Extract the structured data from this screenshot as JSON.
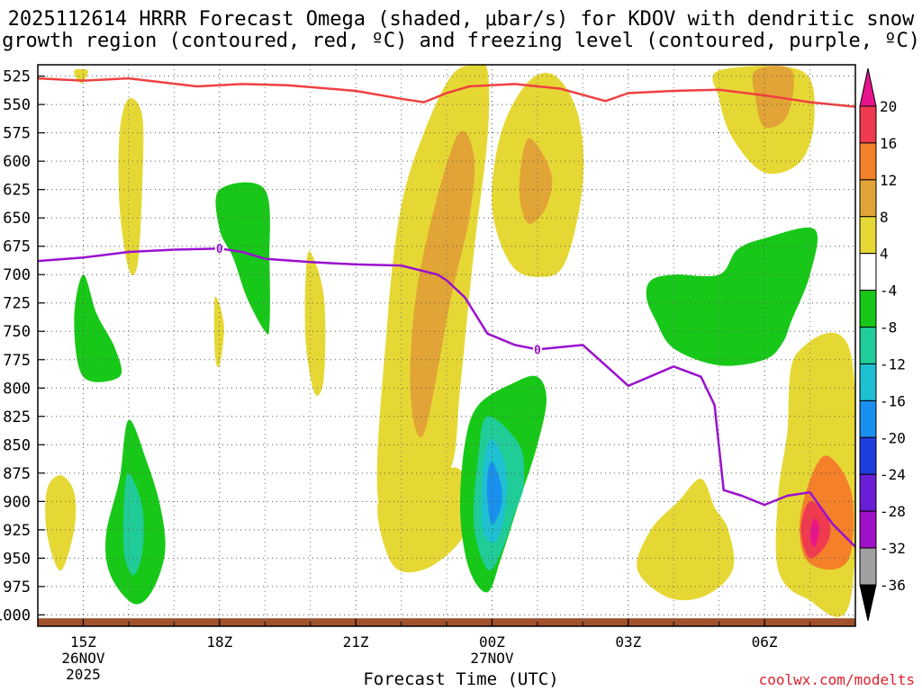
{
  "title_line1": "2025112614 HRRR Forecast Omega (shaded, μbar/s) for KDOV with dendritic snow",
  "title_line2": "growth region (contoured, red, ºC) and freezing level (contoured, purple, ºC)",
  "xlabel": "Forecast Time (UTC)",
  "credit": "coolwx.com/modelts",
  "chart_data": {
    "type": "time-height contour",
    "title": "2025112614 HRRR Forecast Omega (shaded, μbar/s) for KDOV with dendritic snow growth region (contoured, red, ºC) and freezing level (contoured, purple, ºC)",
    "xlabel": "Forecast Time (UTC)",
    "ylabel": "Pressure (hPa)",
    "y_ticks": [
      525,
      550,
      575,
      600,
      625,
      650,
      675,
      700,
      725,
      750,
      775,
      800,
      825,
      850,
      875,
      900,
      925,
      950,
      975,
      1000
    ],
    "ylim": [
      515,
      1010
    ],
    "xlim_hours": [
      14,
      32
    ],
    "x_ticks": [
      {
        "hour": 15,
        "line1": "15Z",
        "line2": "26NOV",
        "line3": "2025"
      },
      {
        "hour": 18,
        "line1": "18Z",
        "line2": "",
        "line3": ""
      },
      {
        "hour": 21,
        "line1": "21Z",
        "line2": "",
        "line3": ""
      },
      {
        "hour": 24,
        "line1": "00Z",
        "line2": "27NOV",
        "line3": ""
      },
      {
        "hour": 27,
        "line1": "03Z",
        "line2": "",
        "line3": ""
      },
      {
        "hour": 30,
        "line1": "06Z",
        "line2": "",
        "line3": ""
      }
    ],
    "colorbar": {
      "labels": [
        "20",
        "16",
        "12",
        "8",
        "4",
        "-4",
        "-8",
        "-12",
        "-16",
        "-20",
        "-24",
        "-28",
        "-32",
        "-36"
      ],
      "bands": [
        {
          "lo": 16,
          "hi": 20,
          "color": "#f03a50"
        },
        {
          "lo": 12,
          "hi": 16,
          "color": "#f4802a"
        },
        {
          "lo": 8,
          "hi": 12,
          "color": "#e2a436"
        },
        {
          "lo": 4,
          "hi": 8,
          "color": "#e6d834"
        },
        {
          "lo": -4,
          "hi": 4,
          "color": "#ffffff"
        },
        {
          "lo": -8,
          "hi": -4,
          "color": "#18c818"
        },
        {
          "lo": -12,
          "hi": -8,
          "color": "#20cc98"
        },
        {
          "lo": -16,
          "hi": -12,
          "color": "#1ec0d2"
        },
        {
          "lo": -20,
          "hi": -16,
          "color": "#1a90ee"
        },
        {
          "lo": -24,
          "hi": -20,
          "color": "#1f3ee0"
        },
        {
          "lo": -28,
          "hi": -24,
          "color": "#6a1ed6"
        },
        {
          "lo": -32,
          "hi": -28,
          "color": "#a010c8"
        },
        {
          "lo": -36,
          "hi": -32,
          "color": "#a0a0a0"
        }
      ],
      "top_arrow_color": "#e8148c",
      "bottom_arrow_color": "#000000"
    },
    "omega_regions": [
      {
        "name": "rising-yellow-a",
        "color": "#e6d834",
        "pts": [
          [
            14.2,
            890
          ],
          [
            14.5,
            877
          ],
          [
            14.8,
            892
          ],
          [
            14.8,
            925
          ],
          [
            14.5,
            961
          ],
          [
            14.2,
            928
          ]
        ]
      },
      {
        "name": "rising-yellow-b",
        "color": "#e6d834",
        "pts": [
          [
            16.0,
            545
          ],
          [
            16.3,
            560
          ],
          [
            16.3,
            620
          ],
          [
            16.2,
            690
          ],
          [
            16.0,
            695
          ],
          [
            15.8,
            640
          ],
          [
            15.8,
            575
          ]
        ]
      },
      {
        "name": "rising-yellow-c",
        "color": "#e6d834",
        "pts": [
          [
            17.9,
            720
          ],
          [
            18.1,
            745
          ],
          [
            18.0,
            780
          ],
          [
            17.9,
            770
          ]
        ]
      },
      {
        "name": "rising-yellow-d",
        "color": "#e6d834",
        "pts": [
          [
            20.0,
            680
          ],
          [
            20.3,
            720
          ],
          [
            20.3,
            790
          ],
          [
            20.1,
            805
          ],
          [
            19.9,
            760
          ],
          [
            19.9,
            700
          ]
        ]
      },
      {
        "name": "rising-yellow-e",
        "color": "#e6d834",
        "pts": [
          [
            14.8,
            520
          ],
          [
            15.1,
            520
          ],
          [
            15.0,
            530
          ],
          [
            14.9,
            530
          ]
        ]
      },
      {
        "name": "rising-yellow-f",
        "color": "#e6d834",
        "pts": [
          [
            22.0,
            640
          ],
          [
            22.5,
            575
          ],
          [
            23.1,
            525
          ],
          [
            23.6,
            515
          ],
          [
            23.9,
            520
          ],
          [
            23.9,
            580
          ],
          [
            23.6,
            680
          ],
          [
            23.3,
            800
          ],
          [
            23.1,
            870
          ],
          [
            22.4,
            890
          ],
          [
            21.5,
            900
          ],
          [
            21.7,
            740
          ]
        ]
      },
      {
        "name": "rising-yellow-f-low",
        "color": "#e6d834",
        "pts": [
          [
            21.5,
            900
          ],
          [
            22.4,
            890
          ],
          [
            23.2,
            870
          ],
          [
            23.6,
            900
          ],
          [
            23.3,
            935
          ],
          [
            22.5,
            960
          ],
          [
            21.8,
            955
          ]
        ]
      },
      {
        "name": "rising-yellow-g",
        "color": "#e6d834",
        "pts": [
          [
            24.2,
            575
          ],
          [
            24.8,
            530
          ],
          [
            25.4,
            525
          ],
          [
            25.9,
            560
          ],
          [
            26.0,
            620
          ],
          [
            25.6,
            690
          ],
          [
            25.0,
            702
          ],
          [
            24.4,
            690
          ],
          [
            24.0,
            640
          ]
        ]
      },
      {
        "name": "rising-yellow-h",
        "color": "#e6d834",
        "pts": [
          [
            29.0,
            520
          ],
          [
            30.8,
            520
          ],
          [
            31.1,
            560
          ],
          [
            30.8,
            600
          ],
          [
            30.0,
            610
          ],
          [
            29.3,
            580
          ],
          [
            29.0,
            545
          ]
        ]
      },
      {
        "name": "rising-yellow-i",
        "color": "#e6d834",
        "pts": [
          [
            28.6,
            880
          ],
          [
            28.9,
            905
          ],
          [
            29.2,
            925
          ],
          [
            29.3,
            960
          ],
          [
            28.7,
            983
          ],
          [
            27.9,
            985
          ],
          [
            27.2,
            960
          ],
          [
            27.5,
            925
          ],
          [
            28.1,
            900
          ]
        ]
      },
      {
        "name": "rising-yellow-j",
        "color": "#e6d834",
        "pts": [
          [
            30.7,
            770
          ],
          [
            31.9,
            770
          ],
          [
            31.9,
            985
          ],
          [
            30.9,
            985
          ],
          [
            30.3,
            960
          ],
          [
            30.3,
            895
          ],
          [
            30.5,
            840
          ]
        ]
      },
      {
        "name": "rising-orange-f",
        "color": "#e2a436",
        "pts": [
          [
            23.2,
            580
          ],
          [
            23.6,
            595
          ],
          [
            23.5,
            650
          ],
          [
            23.1,
            720
          ],
          [
            22.5,
            840
          ],
          [
            22.2,
            800
          ],
          [
            22.4,
            700
          ]
        ]
      },
      {
        "name": "rising-orange-g",
        "color": "#e2a436",
        "pts": [
          [
            24.8,
            580
          ],
          [
            25.3,
            610
          ],
          [
            25.2,
            640
          ],
          [
            24.8,
            655
          ],
          [
            24.6,
            625
          ]
        ]
      },
      {
        "name": "rising-orange-h",
        "color": "#e2a436",
        "pts": [
          [
            29.8,
            520
          ],
          [
            30.6,
            520
          ],
          [
            30.5,
            560
          ],
          [
            30.0,
            570
          ],
          [
            29.8,
            545
          ]
        ]
      },
      {
        "name": "rising-orange-j",
        "color": "#f4802a",
        "pts": [
          [
            31.3,
            860
          ],
          [
            31.9,
            890
          ],
          [
            31.9,
            945
          ],
          [
            31.5,
            960
          ],
          [
            30.9,
            950
          ],
          [
            30.8,
            910
          ]
        ]
      },
      {
        "name": "rising-red-j",
        "color": "#f03a50",
        "pts": [
          [
            31.0,
            900
          ],
          [
            31.4,
            915
          ],
          [
            31.4,
            935
          ],
          [
            31.0,
            950
          ],
          [
            30.8,
            925
          ]
        ]
      },
      {
        "name": "rising-magenta-j",
        "color": "#e8148c",
        "pts": [
          [
            31.1,
            915
          ],
          [
            31.2,
            925
          ],
          [
            31.1,
            940
          ],
          [
            31.0,
            930
          ]
        ]
      },
      {
        "name": "sinking-green-a",
        "color": "#18c818",
        "pts": [
          [
            15.0,
            700
          ],
          [
            15.3,
            735
          ],
          [
            15.7,
            765
          ],
          [
            15.8,
            790
          ],
          [
            15.0,
            790
          ],
          [
            14.8,
            740
          ]
        ]
      },
      {
        "name": "sinking-green-b",
        "color": "#18c818",
        "pts": [
          [
            18.0,
            625
          ],
          [
            19.0,
            625
          ],
          [
            19.1,
            690
          ],
          [
            19.1,
            745
          ],
          [
            19.0,
            750
          ],
          [
            18.6,
            720
          ],
          [
            18.3,
            685
          ],
          [
            18.0,
            660
          ]
        ]
      },
      {
        "name": "sinking-green-c",
        "color": "#18c818",
        "pts": [
          [
            16.0,
            828
          ],
          [
            16.4,
            865
          ],
          [
            16.7,
            905
          ],
          [
            16.8,
            945
          ],
          [
            16.5,
            980
          ],
          [
            16.1,
            990
          ],
          [
            15.6,
            965
          ],
          [
            15.5,
            930
          ],
          [
            15.8,
            880
          ]
        ]
      },
      {
        "name": "sinking-green-d",
        "color": "#18c818",
        "pts": [
          [
            24.5,
            795
          ],
          [
            25.0,
            790
          ],
          [
            25.2,
            810
          ],
          [
            25.0,
            850
          ],
          [
            24.6,
            900
          ],
          [
            24.2,
            950
          ],
          [
            23.9,
            980
          ],
          [
            23.5,
            960
          ],
          [
            23.3,
            910
          ],
          [
            23.4,
            850
          ],
          [
            23.7,
            815
          ]
        ]
      },
      {
        "name": "sinking-green-e",
        "color": "#18c818",
        "pts": [
          [
            27.5,
            705
          ],
          [
            28.0,
            700
          ],
          [
            29.0,
            700
          ],
          [
            29.4,
            678
          ],
          [
            30.0,
            668
          ],
          [
            31.1,
            660
          ],
          [
            31.0,
            700
          ],
          [
            30.6,
            740
          ],
          [
            30.4,
            760
          ],
          [
            30.0,
            775
          ],
          [
            29.0,
            780
          ],
          [
            28.0,
            765
          ],
          [
            27.6,
            740
          ],
          [
            27.4,
            720
          ]
        ]
      },
      {
        "name": "sinking-teal-c",
        "color": "#20cc98",
        "pts": [
          [
            16.0,
            875
          ],
          [
            16.3,
            905
          ],
          [
            16.3,
            945
          ],
          [
            16.1,
            965
          ],
          [
            15.9,
            945
          ],
          [
            15.9,
            900
          ]
        ]
      },
      {
        "name": "sinking-teal-d",
        "color": "#20cc98",
        "pts": [
          [
            23.9,
            825
          ],
          [
            24.6,
            850
          ],
          [
            24.7,
            885
          ],
          [
            24.5,
            910
          ],
          [
            24.2,
            945
          ],
          [
            23.9,
            960
          ],
          [
            23.6,
            920
          ],
          [
            23.7,
            860
          ]
        ]
      },
      {
        "name": "sinking-cyan-d",
        "color": "#1ec0d2",
        "pts": [
          [
            24.0,
            845
          ],
          [
            24.3,
            870
          ],
          [
            24.3,
            905
          ],
          [
            24.1,
            935
          ],
          [
            23.8,
            925
          ],
          [
            23.8,
            870
          ]
        ]
      },
      {
        "name": "sinking-blue-d",
        "color": "#1a90ee",
        "pts": [
          [
            24.0,
            865
          ],
          [
            24.2,
            885
          ],
          [
            24.2,
            905
          ],
          [
            24.0,
            920
          ],
          [
            23.9,
            900
          ],
          [
            23.9,
            878
          ]
        ]
      }
    ],
    "dendritic_red_line": {
      "label": "dendritic snow growth region",
      "color": "#f04040",
      "points": [
        [
          14.0,
          527
        ],
        [
          15.0,
          529
        ],
        [
          16.0,
          527
        ],
        [
          17.5,
          534
        ],
        [
          18.5,
          532
        ],
        [
          19.5,
          533
        ],
        [
          21.0,
          538
        ],
        [
          22.0,
          545
        ],
        [
          22.5,
          548
        ],
        [
          23.0,
          540
        ],
        [
          23.5,
          534
        ],
        [
          24.5,
          532
        ],
        [
          25.5,
          536
        ],
        [
          26.5,
          547
        ],
        [
          27.0,
          540
        ],
        [
          28.0,
          538
        ],
        [
          29.0,
          537
        ],
        [
          30.0,
          542
        ],
        [
          31.0,
          548
        ],
        [
          32.0,
          552
        ]
      ]
    },
    "freezing_level_line": {
      "label": "freezing level",
      "contour_value": "0",
      "color": "#9a10d0",
      "points": [
        [
          14.0,
          688
        ],
        [
          15.0,
          685
        ],
        [
          16.0,
          680
        ],
        [
          17.0,
          678
        ],
        [
          18.0,
          677
        ],
        [
          18.5,
          680
        ],
        [
          19.0,
          686
        ],
        [
          20.0,
          689
        ],
        [
          21.0,
          691
        ],
        [
          22.0,
          692
        ],
        [
          22.8,
          700
        ],
        [
          23.0,
          705
        ],
        [
          23.4,
          720
        ],
        [
          23.9,
          752
        ],
        [
          24.5,
          762
        ],
        [
          25.0,
          766
        ],
        [
          26.0,
          762
        ],
        [
          26.5,
          780
        ],
        [
          27.0,
          798
        ],
        [
          27.3,
          793
        ],
        [
          28.0,
          781
        ],
        [
          28.6,
          790
        ],
        [
          28.9,
          815
        ],
        [
          29.1,
          890
        ],
        [
          29.5,
          895
        ],
        [
          30.0,
          903
        ],
        [
          30.5,
          895
        ],
        [
          31.0,
          892
        ],
        [
          31.5,
          920
        ],
        [
          32.0,
          940
        ]
      ],
      "label_positions": [
        18.0,
        25.0
      ]
    },
    "terrain_surface": {
      "color": "#a0522d",
      "top_hpa": 1003
    }
  }
}
